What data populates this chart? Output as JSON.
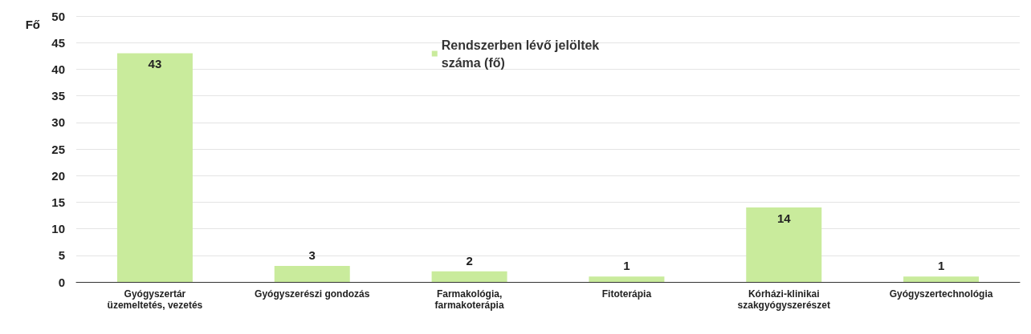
{
  "chart_data": {
    "type": "bar",
    "ylabel": "Fő",
    "categories": [
      "Gyógyszertár\nüzemeltetés, vezetés",
      "Gyógyszerészi gondozás",
      "Farmakológia,\nfarmakoterápia",
      "Fitoterápia",
      "Kórházi-klinikai\nszakgyógyszerészet",
      "Gyógyszertechnológia"
    ],
    "series": [
      {
        "name": "Rendszerben lévő jelöltek\nszáma (fő)",
        "color": "#c9eb9c",
        "values": [
          43,
          3,
          2,
          1,
          14,
          1
        ]
      }
    ],
    "ylim": [
      0,
      50
    ],
    "yticks": [
      0,
      5,
      10,
      15,
      20,
      25,
      30,
      35,
      40,
      45,
      50
    ],
    "grid": "y",
    "legend": "top",
    "data_labels": true
  }
}
